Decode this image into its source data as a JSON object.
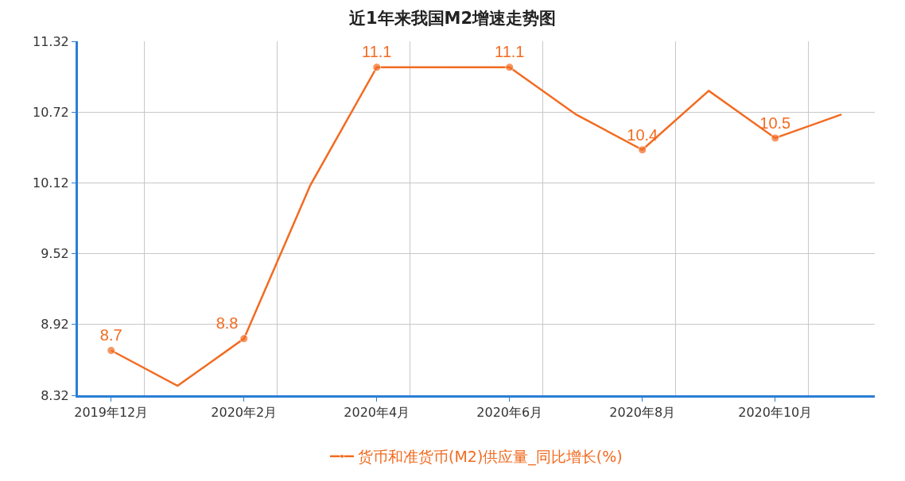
{
  "chart_data": {
    "type": "line",
    "title": "近1年来我国M2增速走势图",
    "categories": [
      "2019年12月",
      null,
      "2020年2月",
      null,
      "2020年4月",
      null,
      "2020年6月",
      null,
      "2020年8月",
      null,
      "2020年10月",
      null
    ],
    "series": [
      {
        "name": "货币和准货币(M2)供应量_同比增长(%)",
        "color": "#f26b21",
        "values": [
          8.7,
          8.4,
          8.8,
          10.1,
          11.1,
          11.1,
          11.1,
          10.7,
          10.4,
          10.9,
          10.5,
          10.7
        ],
        "value_labels": [
          "8.7",
          null,
          "8.8",
          null,
          "11.1",
          null,
          "11.1",
          null,
          "10.4",
          null,
          "10.5",
          null
        ]
      }
    ],
    "ylim": [
      8.32,
      11.32
    ],
    "yticks": [
      8.32,
      8.92,
      9.52,
      10.12,
      10.72,
      11.32
    ],
    "grid": true,
    "legend": "bottom",
    "marker": "circle",
    "line_style": "solid"
  }
}
